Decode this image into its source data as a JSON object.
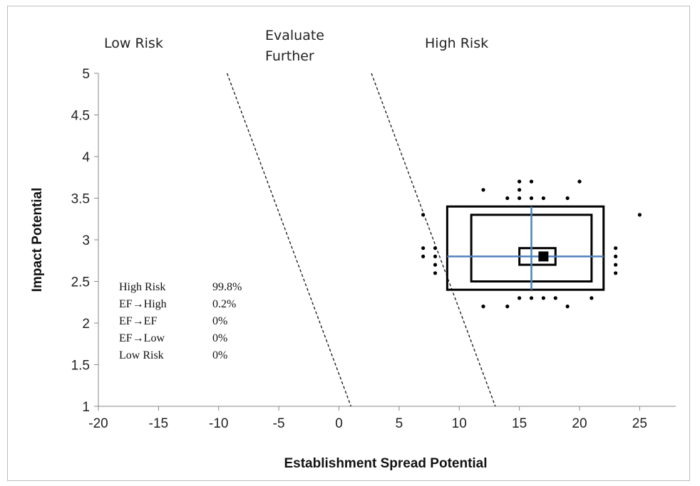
{
  "chart_data": {
    "type": "scatter",
    "xlabel": "Establishment Spread Potential",
    "ylabel": "Impact Potential",
    "xlim": [
      -20,
      28
    ],
    "ylim": [
      1,
      5
    ],
    "x_ticks": [
      "-20",
      "-15",
      "-10",
      "-5",
      "0",
      "5",
      "10",
      "15",
      "20",
      "25"
    ],
    "y_ticks": [
      "1",
      "1.5",
      "2",
      "2.5",
      "3",
      "3.5",
      "4",
      "4.5",
      "5"
    ],
    "grid": false,
    "region_labels": [
      {
        "lines": [
          "Low Risk"
        ]
      },
      {
        "lines": [
          "Evaluate",
          "Further"
        ]
      },
      {
        "lines": [
          "High Risk"
        ]
      }
    ],
    "boundary_lines": [
      {
        "from": [
          -9.3,
          5
        ],
        "to": [
          1,
          1
        ]
      },
      {
        "from": [
          2.7,
          5
        ],
        "to": [
          13,
          1
        ]
      }
    ],
    "center": {
      "x": 17,
      "y": 2.8
    },
    "boxes": [
      {
        "x": [
          9,
          22
        ],
        "y": [
          2.4,
          3.4
        ]
      },
      {
        "x": [
          11,
          21
        ],
        "y": [
          2.5,
          3.3
        ]
      },
      {
        "x": [
          15,
          18
        ],
        "y": [
          2.7,
          2.9
        ]
      }
    ],
    "crosshair": {
      "x": 16,
      "y": 2.8,
      "x_range": [
        9,
        22
      ],
      "y_range": [
        2.4,
        3.4
      ]
    },
    "points": [
      [
        12,
        3.6
      ],
      [
        14,
        3.5
      ],
      [
        15,
        3.7
      ],
      [
        15,
        3.6
      ],
      [
        15,
        3.5
      ],
      [
        16,
        3.7
      ],
      [
        16,
        3.5
      ],
      [
        17,
        3.5
      ],
      [
        19,
        3.5
      ],
      [
        20,
        3.7
      ],
      [
        25,
        3.3
      ],
      [
        7,
        3.3
      ],
      [
        7,
        2.9
      ],
      [
        8,
        2.9
      ],
      [
        7,
        2.8
      ],
      [
        8,
        2.8
      ],
      [
        8,
        2.7
      ],
      [
        8,
        2.6
      ],
      [
        23,
        2.9
      ],
      [
        23,
        2.8
      ],
      [
        23,
        2.7
      ],
      [
        23,
        2.6
      ],
      [
        15,
        2.3
      ],
      [
        16,
        2.3
      ],
      [
        17,
        2.3
      ],
      [
        18,
        2.3
      ],
      [
        21,
        2.3
      ],
      [
        12,
        2.2
      ],
      [
        14,
        2.2
      ],
      [
        19,
        2.2
      ]
    ],
    "stats": [
      {
        "label": "High Risk",
        "value": "99.8%"
      },
      {
        "label": "EF→High",
        "value": "0.2%"
      },
      {
        "label": "EF→EF",
        "value": "0%"
      },
      {
        "label": "EF→Low",
        "value": "0%"
      },
      {
        "label": "Low Risk",
        "value": "0%"
      }
    ]
  }
}
